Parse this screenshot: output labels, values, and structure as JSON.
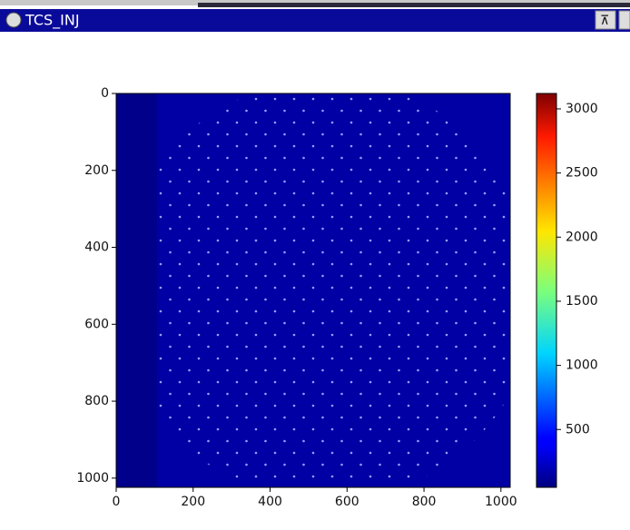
{
  "window": {
    "title": "TCS_INJ"
  },
  "chart_data": {
    "type": "image",
    "xlim": [
      0,
      1024
    ],
    "xticks": [
      0,
      200,
      400,
      600,
      800,
      1000
    ],
    "ylim": [
      0,
      1024
    ],
    "yticks": [
      0,
      200,
      400,
      600,
      800,
      1000
    ],
    "y_inverted": true,
    "colormap": "jet",
    "clim": [
      49,
      3120
    ],
    "cticks": [
      500,
      1000,
      1500,
      2000,
      2500,
      3000
    ]
  }
}
